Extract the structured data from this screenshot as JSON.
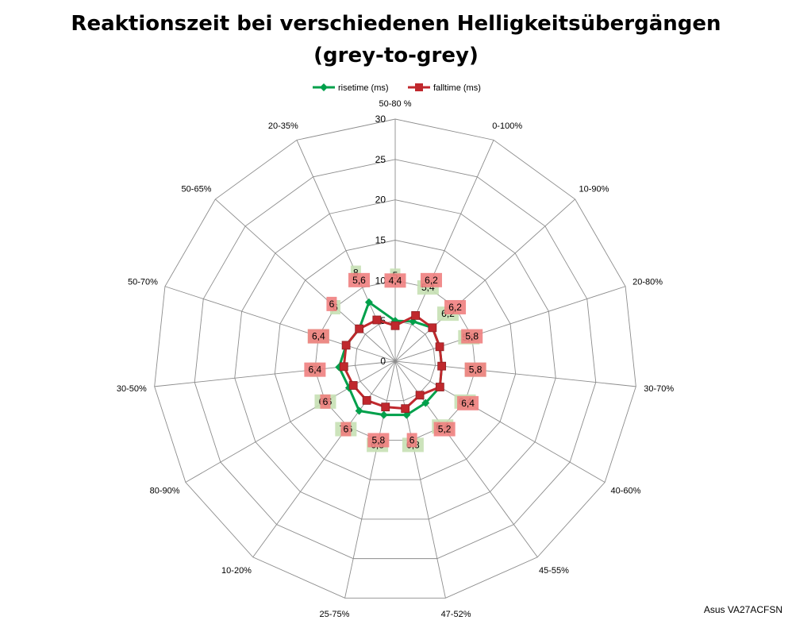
{
  "title_lines": [
    "Reaktionszeit bei verschiedenen Helligkeitsübergängen",
    "(grey-to-grey)"
  ],
  "credit": "Asus VA27ACFSN",
  "chart_data": {
    "type": "radar",
    "categories": [
      "50-80 %",
      "0-100%",
      "10-90%",
      "20-80%",
      "30-70%",
      "40-60%",
      "45-55%",
      "47-52%",
      "25-75%",
      "10-20%",
      "80-90%",
      "30-50%",
      "50-70%",
      "50-65%",
      "20-35%"
    ],
    "r_ticks": [
      0,
      5,
      10,
      15,
      20,
      25,
      30
    ],
    "rlim": [
      0,
      30
    ],
    "grid": true,
    "legend_position": "top",
    "series": [
      {
        "name": "risetime (ms)",
        "color": "#00a04b",
        "label_bg": "#c6e0b4",
        "values": [
          5,
          5.4,
          6.2,
          5.8,
          5.8,
          6.4,
          6.4,
          6.8,
          6.8,
          7.6,
          6.6,
          7,
          6.4,
          6,
          8
        ],
        "labels": [
          "5",
          "5,4",
          "6,2",
          "5,8",
          "5,8",
          "6,4",
          "6,4",
          "6,8",
          "6,8",
          "7,6",
          "6,6",
          "7",
          "6,4",
          "6",
          "8"
        ]
      },
      {
        "name": "falltime (ms)",
        "color": "#c0282d",
        "label_bg": "#f08080",
        "values": [
          4.4,
          6.2,
          6.2,
          5.8,
          5.8,
          6.4,
          5.2,
          6,
          5.8,
          6,
          6,
          6.4,
          6.4,
          6,
          5.6
        ],
        "labels": [
          "4,4",
          "6,2",
          "6,2",
          "5,8",
          "5,8",
          "6,4",
          "5,2",
          "6",
          "5,8",
          "6",
          "6",
          "6,4",
          "6,4",
          "6",
          "5,6"
        ]
      }
    ]
  }
}
